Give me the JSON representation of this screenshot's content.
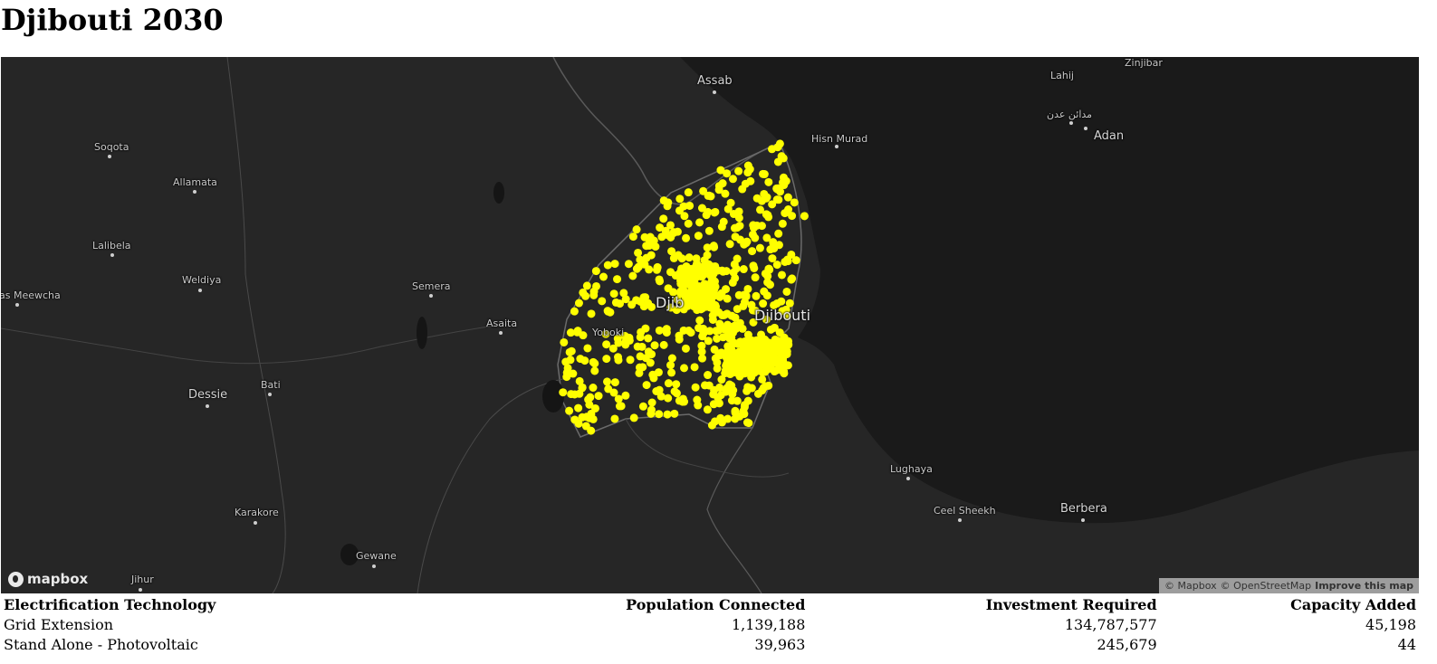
{
  "page": {
    "title": "Djibouti 2030"
  },
  "map": {
    "marker_color": "#ffff00",
    "places": [
      {
        "name": "Assab",
        "size": "mid"
      },
      {
        "name": "Lahij",
        "size": "small"
      },
      {
        "name": "Zinjibar",
        "size": "small"
      },
      {
        "name": "مدائن عدن",
        "size": "small"
      },
      {
        "name": "Adan",
        "size": "mid"
      },
      {
        "name": "Hisn Murad",
        "size": "small"
      },
      {
        "name": "Soqota",
        "size": "small"
      },
      {
        "name": "Allamata",
        "size": "small"
      },
      {
        "name": "Lalibela",
        "size": "small"
      },
      {
        "name": "Weldiya",
        "size": "small"
      },
      {
        "name": "as Meewcha",
        "size": "small"
      },
      {
        "name": "Semera",
        "size": "small"
      },
      {
        "name": "Asaita",
        "size": "small"
      },
      {
        "name": "Yoboki",
        "size": "small"
      },
      {
        "name": "Djib",
        "size": "big"
      },
      {
        "name": "Djibouti",
        "size": "big"
      },
      {
        "name": "Dessie",
        "size": "mid"
      },
      {
        "name": "Bati",
        "size": "small"
      },
      {
        "name": "Lughaya",
        "size": "small"
      },
      {
        "name": "Ceel Sheekh",
        "size": "small"
      },
      {
        "name": "Berbera",
        "size": "mid"
      },
      {
        "name": "Karakore",
        "size": "small"
      },
      {
        "name": "Gewane",
        "size": "small"
      },
      {
        "name": "Jihur",
        "size": "small"
      }
    ],
    "logo": "mapbox",
    "attribution": {
      "mapbox": "© Mapbox",
      "osm": "© OpenStreetMap",
      "improve": "Improve this map"
    }
  },
  "table": {
    "headers": [
      "Electrification Technology",
      "Population Connected",
      "Investment Required",
      "Capacity Added"
    ],
    "rows": [
      [
        "Grid Extension",
        "1,139,188",
        "134,787,577",
        "45,198"
      ],
      [
        "Stand Alone - Photovoltaic",
        "39,963",
        "245,679",
        "44"
      ]
    ]
  }
}
